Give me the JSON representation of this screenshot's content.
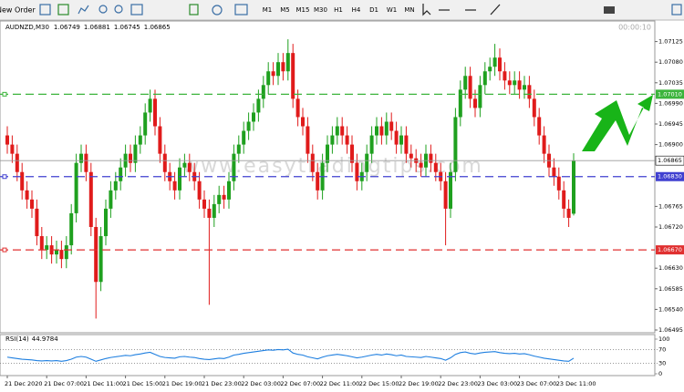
{
  "toolbar": {
    "new_order": "New Order",
    "timeframes": [
      "M1",
      "M5",
      "M15",
      "M30",
      "H1",
      "H4",
      "D1",
      "W1",
      "MN"
    ]
  },
  "chart_data": {
    "type": "candlestick",
    "symbol": "AUDNZD,M30",
    "timer": "00:00:10",
    "watermark": "www.easytradingtips.com",
    "up_color": "#1fa01f",
    "down_color": "#e01b1b",
    "categories": [
      "21 Dec 2020",
      null,
      null,
      null,
      null,
      null,
      null,
      null,
      "21 Dec 07:00",
      null,
      null,
      null,
      null,
      null,
      null,
      null,
      "21 Dec 11:00",
      null,
      null,
      null,
      null,
      null,
      null,
      null,
      "21 Dec 15:00",
      null,
      null,
      null,
      null,
      null,
      null,
      null,
      "21 Dec 19:00",
      null,
      null,
      null,
      null,
      null,
      null,
      null,
      "21 Dec 23:00",
      null,
      null,
      null,
      null,
      null,
      null,
      null,
      "22 Dec 03:00",
      null,
      null,
      null,
      null,
      null,
      null,
      null,
      "22 Dec 07:00",
      null,
      null,
      null,
      null,
      null,
      null,
      null,
      "22 Dec 11:00",
      null,
      null,
      null,
      null,
      null,
      null,
      null,
      "22 Dec 15:00",
      null,
      null,
      null,
      null,
      null,
      null,
      null,
      "22 Dec 19:00",
      null,
      null,
      null,
      null,
      null,
      null,
      null,
      "22 Dec 23:00",
      null,
      null,
      null,
      null,
      null,
      null,
      null,
      "23 Dec 03:00",
      null,
      null,
      null,
      null,
      null,
      null,
      null,
      "23 Dec 07:00",
      null,
      null,
      null,
      null,
      null,
      null,
      null,
      "23 Dec 11:00",
      null,
      null,
      null
    ],
    "open": [
      1.0692,
      1.069,
      1.0688,
      1.0684,
      1.068,
      1.0678,
      1.0676,
      1.067,
      1.0667,
      1.0668,
      1.0666,
      1.0667,
      1.0665,
      1.0668,
      1.0675,
      1.0686,
      1.0688,
      1.0684,
      1.0672,
      1.066,
      1.067,
      1.0676,
      1.068,
      1.0682,
      1.0685,
      1.0688,
      1.0686,
      1.069,
      1.0692,
      1.0697,
      1.07,
      1.0694,
      1.0688,
      1.0684,
      1.0682,
      1.068,
      1.0685,
      1.0686,
      1.0684,
      1.0682,
      1.0678,
      1.0676,
      1.0674,
      1.0677,
      1.0679,
      1.0678,
      1.0682,
      1.0688,
      1.069,
      1.0693,
      1.0695,
      1.0697,
      1.07,
      1.0703,
      1.0706,
      1.0705,
      1.0708,
      1.0706,
      1.071,
      1.07,
      1.0696,
      1.0694,
      1.0688,
      1.0684,
      1.068,
      1.0686,
      1.069,
      1.0692,
      1.0694,
      1.0692,
      1.069,
      1.0686,
      1.0682,
      1.0684,
      1.0688,
      1.0692,
      1.0694,
      1.0692,
      1.0695,
      1.0693,
      1.069,
      1.0692,
      1.0688,
      1.0687,
      1.0686,
      1.0685,
      1.0688,
      1.0686,
      1.0684,
      1.0682,
      1.0676,
      1.0684,
      1.0696,
      1.0702,
      1.0705,
      1.07,
      1.0698,
      1.0703,
      1.0706,
      1.0707,
      1.0709,
      1.0706,
      1.0704,
      1.0703,
      1.0704,
      1.0702,
      1.0703,
      1.07,
      1.0696,
      1.0692,
      1.0688,
      1.0685,
      1.0683,
      1.068,
      1.0676,
      1.06749
    ],
    "high": [
      1.0694,
      1.0692,
      1.069,
      1.0686,
      1.0682,
      1.068,
      1.0678,
      1.0672,
      1.067,
      1.067,
      1.0669,
      1.0669,
      1.067,
      1.0677,
      1.0688,
      1.069,
      1.069,
      1.0686,
      1.0674,
      1.0672,
      1.0678,
      1.0682,
      1.0684,
      1.0687,
      1.069,
      1.069,
      1.0692,
      1.0694,
      1.0699,
      1.0702,
      1.0702,
      1.0696,
      1.069,
      1.0686,
      1.0684,
      1.0687,
      1.0688,
      1.0688,
      1.0686,
      1.0684,
      1.068,
      1.0678,
      1.0679,
      1.0681,
      1.0681,
      1.0684,
      1.069,
      1.0692,
      1.0695,
      1.0697,
      1.0699,
      1.0702,
      1.0705,
      1.0708,
      1.0708,
      1.071,
      1.071,
      1.0713,
      1.0712,
      1.0702,
      1.0698,
      1.0696,
      1.069,
      1.0686,
      1.0688,
      1.0692,
      1.0694,
      1.0696,
      1.0696,
      1.0694,
      1.0692,
      1.0688,
      1.0686,
      1.069,
      1.0694,
      1.0696,
      1.0696,
      1.0697,
      1.0697,
      1.0695,
      1.0694,
      1.0694,
      1.069,
      1.0689,
      1.0688,
      1.069,
      1.069,
      1.0688,
      1.0686,
      1.0684,
      1.0686,
      1.0698,
      1.0704,
      1.0707,
      1.0707,
      1.0702,
      1.0705,
      1.0708,
      1.0709,
      1.0712,
      1.0711,
      1.0708,
      1.0706,
      1.0706,
      1.0706,
      1.0705,
      1.0705,
      1.0702,
      1.0698,
      1.0694,
      1.069,
      1.0687,
      1.0685,
      1.0682,
      1.0678,
      1.06881
    ],
    "low": [
      1.0688,
      1.0686,
      1.0682,
      1.0678,
      1.0676,
      1.0674,
      1.0668,
      1.0665,
      1.0665,
      1.0664,
      1.0664,
      1.0663,
      1.0663,
      1.0666,
      1.0673,
      1.0684,
      1.0682,
      1.067,
      1.0652,
      1.0658,
      1.0668,
      1.0674,
      1.0678,
      1.068,
      1.0683,
      1.0684,
      1.0684,
      1.0688,
      1.069,
      1.0695,
      1.0692,
      1.0686,
      1.0682,
      1.068,
      1.0678,
      1.0678,
      1.0683,
      1.0682,
      1.068,
      1.0676,
      1.0674,
      1.0655,
      1.0672,
      1.0675,
      1.0676,
      1.0676,
      1.068,
      1.0686,
      1.0688,
      1.0691,
      1.0693,
      1.0695,
      1.0698,
      1.0701,
      1.0703,
      1.0703,
      1.0704,
      1.0704,
      1.0698,
      1.0694,
      1.0692,
      1.0686,
      1.0682,
      1.0678,
      1.0678,
      1.0684,
      1.0688,
      1.069,
      1.069,
      1.0688,
      1.0684,
      1.068,
      1.068,
      1.0682,
      1.0686,
      1.069,
      1.069,
      1.069,
      1.0691,
      1.0688,
      1.0688,
      1.0686,
      1.0685,
      1.0684,
      1.0683,
      1.0683,
      1.0684,
      1.0682,
      1.068,
      1.0668,
      1.0674,
      1.0682,
      1.0694,
      1.07,
      1.0698,
      1.0696,
      1.0696,
      1.0701,
      1.0704,
      1.0705,
      1.0704,
      1.0702,
      1.0701,
      1.0701,
      1.07,
      1.07,
      1.0698,
      1.0694,
      1.069,
      1.0686,
      1.0683,
      1.0681,
      1.0678,
      1.0674,
      1.0672,
      1.06745
    ],
    "close": [
      1.069,
      1.0688,
      1.0684,
      1.068,
      1.0678,
      1.0676,
      1.067,
      1.0667,
      1.0668,
      1.0666,
      1.0667,
      1.0665,
      1.0668,
      1.0675,
      1.0686,
      1.0688,
      1.0684,
      1.0672,
      1.066,
      1.067,
      1.0676,
      1.068,
      1.0682,
      1.0685,
      1.0688,
      1.0686,
      1.069,
      1.0692,
      1.0697,
      1.07,
      1.0694,
      1.0688,
      1.0684,
      1.0682,
      1.068,
      1.0685,
      1.0686,
      1.0684,
      1.0682,
      1.0678,
      1.0676,
      1.0674,
      1.0677,
      1.0679,
      1.0678,
      1.0682,
      1.0688,
      1.069,
      1.0693,
      1.0695,
      1.0697,
      1.07,
      1.0703,
      1.0706,
      1.0705,
      1.0708,
      1.0706,
      1.071,
      1.07,
      1.0696,
      1.0694,
      1.0688,
      1.0684,
      1.068,
      1.0686,
      1.069,
      1.0692,
      1.0694,
      1.0692,
      1.069,
      1.0686,
      1.0682,
      1.0684,
      1.0688,
      1.0692,
      1.0694,
      1.0692,
      1.0695,
      1.0693,
      1.069,
      1.0692,
      1.0688,
      1.0687,
      1.0686,
      1.0685,
      1.0688,
      1.0686,
      1.0684,
      1.0682,
      1.0676,
      1.0684,
      1.0696,
      1.0702,
      1.0705,
      1.07,
      1.0698,
      1.0703,
      1.0706,
      1.0707,
      1.0709,
      1.0706,
      1.0704,
      1.0703,
      1.0704,
      1.0702,
      1.0703,
      1.07,
      1.0696,
      1.0692,
      1.0688,
      1.0685,
      1.0683,
      1.068,
      1.0676,
      1.0674,
      1.06865
    ],
    "ylim": [
      1.06489,
      1.0717
    ],
    "yticks": [
      1.07125,
      {
        "value": 1.0708,
        "label": "1.07080"
      },
      1.07035,
      {
        "value": 1.0699,
        "label": "1.06990"
      },
      1.06945,
      {
        "value": 1.069,
        "label": "1.06900"
      },
      1.06765,
      {
        "value": 1.0672,
        "label": "1.06720"
      },
      {
        "value": 1.0663,
        "label": "1.06630"
      },
      1.06585,
      {
        "value": 1.0654,
        "label": "1.06540"
      },
      1.06495
    ],
    "levels": [
      {
        "value": 1.0701,
        "label": "1.07010",
        "color": "#3cb43c"
      },
      {
        "value": 1.0683,
        "label": "1.06830",
        "color": "#4040d0"
      },
      {
        "value": 1.0667,
        "label": "1.06670",
        "color": "#e03030"
      }
    ],
    "rsi": {
      "title": "RSI(14)",
      "color": "#1e7fe0",
      "ylim": [
        0,
        100
      ],
      "yticks": [
        0,
        30,
        70,
        100
      ],
      "values": [
        48,
        46,
        44,
        42,
        41,
        40,
        38,
        37,
        38,
        37,
        38,
        36,
        38,
        42,
        48,
        50,
        48,
        42,
        36,
        40,
        44,
        47,
        49,
        51,
        53,
        52,
        55,
        57,
        60,
        62,
        56,
        50,
        47,
        46,
        45,
        49,
        50,
        48,
        47,
        44,
        42,
        41,
        43,
        45,
        44,
        48,
        54,
        56,
        59,
        61,
        63,
        65,
        67,
        69,
        68,
        70,
        69,
        71,
        60,
        56,
        54,
        49,
        46,
        43,
        48,
        52,
        54,
        56,
        54,
        52,
        49,
        46,
        48,
        51,
        54,
        56,
        54,
        57,
        55,
        52,
        54,
        50,
        49,
        48,
        47,
        50,
        48,
        46,
        44,
        39,
        46,
        56,
        61,
        63,
        59,
        57,
        60,
        62,
        63,
        64,
        61,
        59,
        58,
        59,
        57,
        58,
        55,
        51,
        48,
        45,
        43,
        41,
        39,
        37,
        36,
        44.9784
      ]
    }
  }
}
